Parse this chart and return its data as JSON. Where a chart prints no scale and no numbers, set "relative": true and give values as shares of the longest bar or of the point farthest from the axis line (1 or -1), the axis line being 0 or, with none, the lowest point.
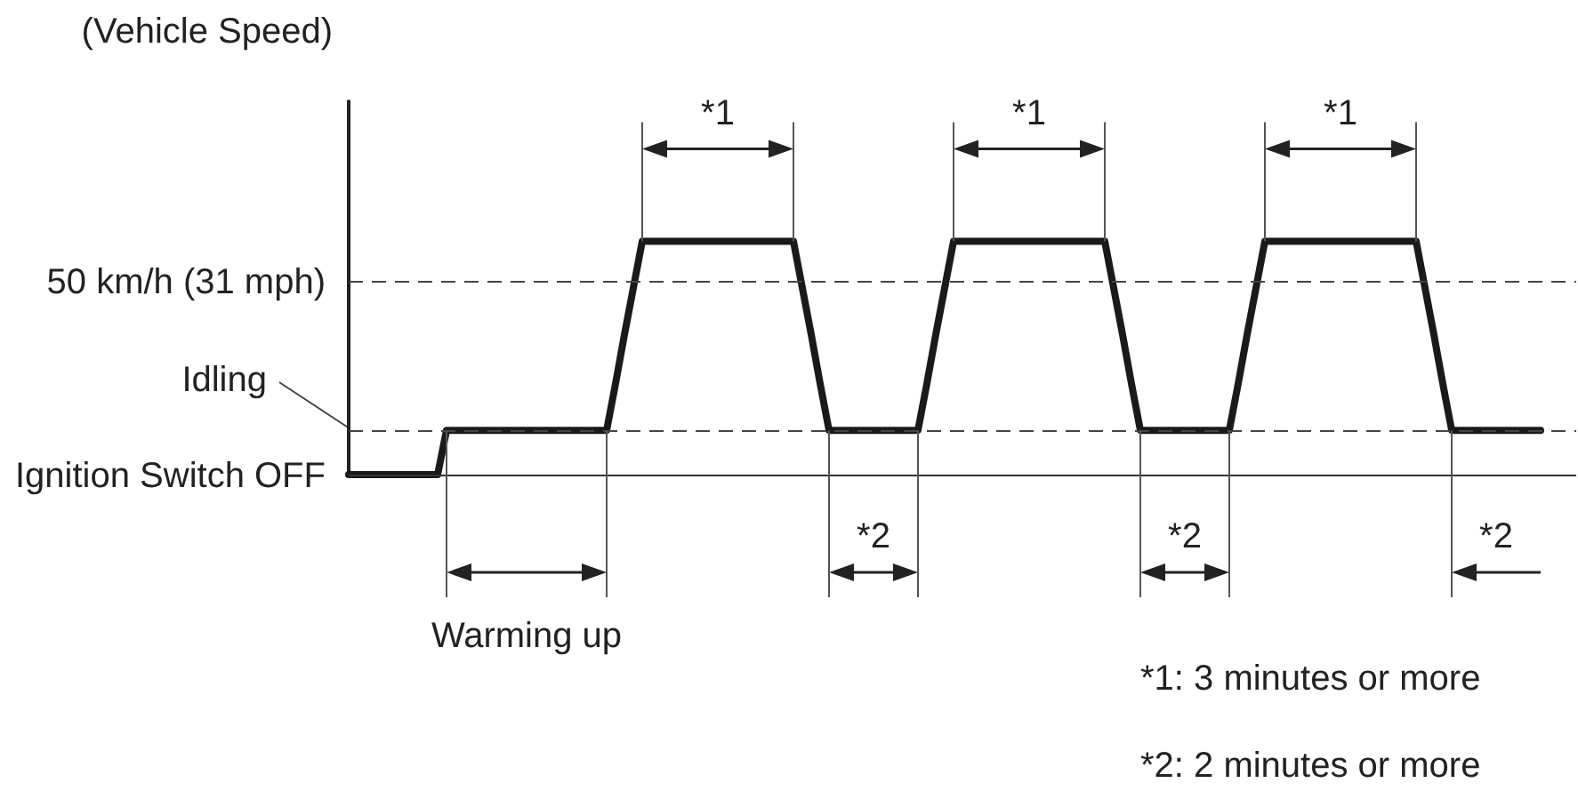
{
  "chart_data": {
    "type": "line",
    "relative": true,
    "line_style": "solid",
    "color": "#1a1a1a",
    "categories": [
      null,
      null,
      null,
      null,
      null,
      null,
      null,
      null,
      null,
      null,
      null,
      null,
      null,
      null,
      null,
      null,
      null,
      null,
      null,
      null,
      null,
      null,
      null,
      null,
      null,
      null,
      null,
      null,
      null,
      null,
      null,
      null,
      null,
      null,
      null,
      null,
      null,
      null,
      null,
      null,
      null,
      null,
      null,
      null,
      null,
      null,
      null,
      null,
      null,
      null,
      null,
      null,
      null,
      null,
      null,
      null,
      null,
      null,
      null,
      null,
      null,
      null,
      null,
      null,
      null,
      null,
      null,
      null,
      null,
      null,
      null,
      null,
      null,
      null,
      null,
      null,
      null,
      null,
      null,
      null,
      null,
      null,
      null,
      null,
      null,
      null,
      null,
      null,
      null,
      null,
      null,
      null,
      null,
      null,
      null,
      null,
      null,
      null,
      null,
      null,
      null,
      null,
      null,
      null,
      null,
      null,
      null,
      null,
      null,
      null,
      null,
      null,
      null,
      null,
      null,
      null,
      null,
      null,
      null,
      null,
      null,
      null,
      null,
      null,
      null,
      null,
      null,
      null,
      null,
      null,
      null,
      null,
      null,
      null,
      null,
      null,
      null,
      null,
      null
    ],
    "values": [
      0,
      0,
      0,
      0,
      0,
      0,
      0,
      0,
      0,
      0,
      0,
      0.19,
      0.19,
      0.19,
      0.19,
      0.19,
      0.19,
      0.19,
      0.19,
      0.19,
      0.19,
      0.19,
      0.19,
      0.19,
      0.19,
      0.19,
      0.19,
      0.19,
      0.19,
      0.19,
      0.39,
      0.6,
      0.8,
      1,
      1,
      1,
      1,
      1,
      1,
      1,
      1,
      1,
      1,
      1,
      1,
      1,
      1,
      1,
      1,
      1,
      1,
      0.8,
      0.6,
      0.39,
      0.19,
      0.19,
      0.19,
      0.19,
      0.19,
      0.19,
      0.19,
      0.19,
      0.19,
      0.19,
      0.19,
      0.39,
      0.6,
      0.8,
      1,
      1,
      1,
      1,
      1,
      1,
      1,
      1,
      1,
      1,
      1,
      1,
      1,
      1,
      1,
      1,
      1,
      1,
      0.8,
      0.6,
      0.39,
      0.19,
      0.19,
      0.19,
      0.19,
      0.19,
      0.19,
      0.19,
      0.19,
      0.19,
      0.19,
      0.19,
      0.39,
      0.6,
      0.8,
      1,
      1,
      1,
      1,
      1,
      1,
      1,
      1,
      1,
      1,
      1,
      1,
      1,
      1,
      1,
      1,
      1,
      1,
      0.8,
      0.6,
      0.39,
      0.19,
      0.19,
      0.19,
      0.19,
      0.19,
      0.19,
      0.19,
      0.19,
      0.19,
      0.19,
      0.19,
      null,
      null,
      null,
      null
    ],
    "ref_lines": [
      {
        "axis": "y",
        "value": 0.83,
        "label": "50 km/h (31 mph)",
        "line_style": "dashed",
        "color": "#444444"
      },
      {
        "axis": "y",
        "value": 0.19,
        "label": "Idling",
        "line_style": "dashed",
        "color": "#444444"
      },
      {
        "axis": "y",
        "value": 0,
        "label": "Ignition Switch OFF",
        "line_style": "solid",
        "color": "#333333"
      }
    ],
    "annotations": [
      "(Vehicle Speed)",
      "*1",
      "*1",
      "*1",
      "*2",
      "*2",
      "*2",
      "Warming up",
      "*1: 3 minutes or more",
      "*2: 2 minutes or more"
    ]
  }
}
